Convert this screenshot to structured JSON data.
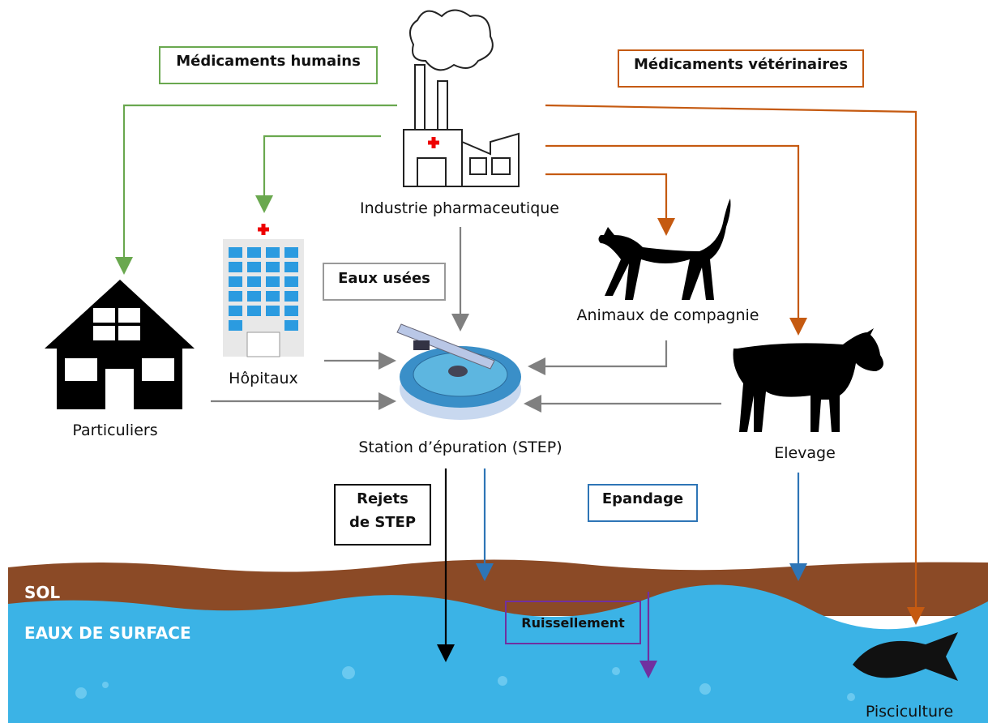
{
  "boxes": {
    "human_drugs": "Médicaments humains",
    "vet_drugs": "Médicaments vétérinaires",
    "wastewater": "Eaux usées",
    "step_discharge": [
      "Rejets",
      "de STEP"
    ],
    "spreading": "Epandage",
    "runoff": "Ruissellement"
  },
  "nodes": {
    "industry": "Industrie pharmaceutique",
    "hospitals": "Hôpitaux",
    "households": "Particuliers",
    "step": "Station d’épuration (STEP)",
    "pets": "Animaux de compagnie",
    "livestock": "Elevage",
    "fish_farming": "Pisciculture"
  },
  "layers": {
    "soil": "SOL",
    "surface_water": "EAUX DE SURFACE"
  }
}
